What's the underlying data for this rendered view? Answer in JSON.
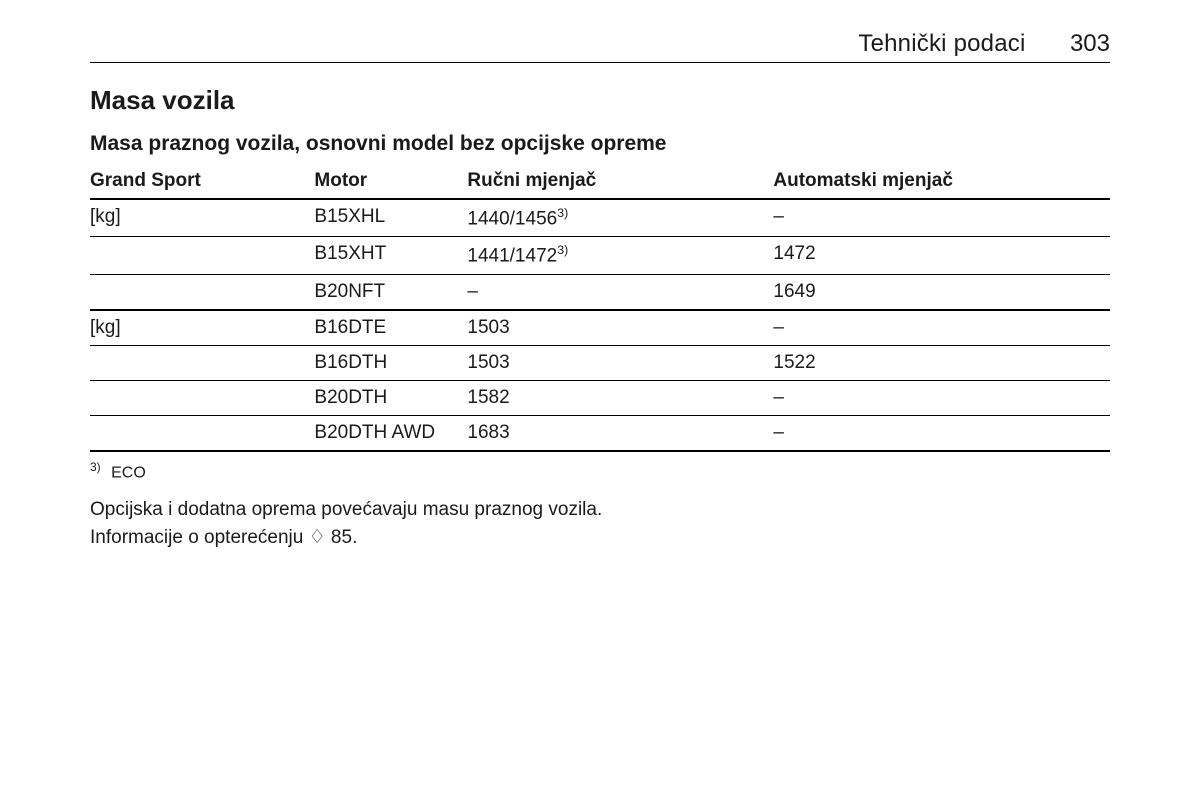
{
  "header": {
    "section": "Tehnički podaci",
    "page": "303"
  },
  "h1": "Masa vozila",
  "h2": "Masa praznog vozila, osnovni model bez opcijske opreme",
  "table": {
    "columns": [
      "Grand Sport",
      "Motor",
      "Ručni mjenjač",
      "Automatski mjenjač"
    ],
    "groups": [
      {
        "variant": "[kg]",
        "rows": [
          {
            "motor": "B15XHL",
            "manual": "1440/1456",
            "manual_sup": "3)",
            "auto": "–"
          },
          {
            "motor": "B15XHT",
            "manual": "1441/1472",
            "manual_sup": "3)",
            "auto": "1472"
          },
          {
            "motor": "B20NFT",
            "manual": "–",
            "manual_sup": "",
            "auto": "1649"
          }
        ]
      },
      {
        "variant": "[kg]",
        "rows": [
          {
            "motor": "B16DTE",
            "manual": "1503",
            "manual_sup": "",
            "auto": "–"
          },
          {
            "motor": "B16DTH",
            "manual": "1503",
            "manual_sup": "",
            "auto": "1522"
          },
          {
            "motor": "B20DTH",
            "manual": "1582",
            "manual_sup": "",
            "auto": "–"
          },
          {
            "motor": "B20DTH AWD",
            "manual": "1683",
            "manual_sup": "",
            "auto": "–"
          }
        ]
      }
    ]
  },
  "footnote": {
    "marker": "3)",
    "text": "ECO"
  },
  "notes": [
    "Opcijska i dodatna oprema povećavaju masu praznog vozila.",
    "Informacije o opterećenju ♢ 85."
  ]
}
